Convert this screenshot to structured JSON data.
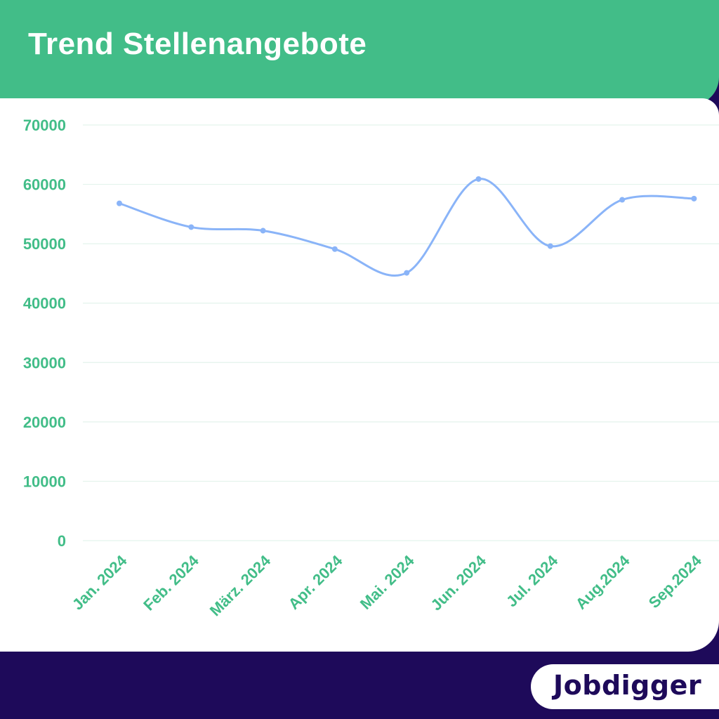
{
  "header": {
    "title": "Trend Stellenangebote"
  },
  "brand": {
    "logo_text": "Jobdigger"
  },
  "colors": {
    "header_green": "#42bd88",
    "footer_navy": "#1e0a5a",
    "line_blue": "#8ab4f8",
    "tick_green": "#42bd88",
    "grid": "#e3f3ec"
  },
  "chart_data": {
    "type": "line",
    "title": "Trend Stellenangebote",
    "xlabel": "",
    "ylabel": "",
    "categories": [
      "Jan. 2024",
      "Feb. 2024",
      "März. 2024",
      "Apr. 2024",
      "Mai. 2024",
      "Jun. 2024",
      "Jul. 2024",
      "Aug.2024",
      "Sep.2024"
    ],
    "series": [
      {
        "values": [
          56800,
          52800,
          52200,
          49100,
          45100,
          60900,
          49600,
          57400,
          57600
        ]
      }
    ],
    "ylim": [
      0,
      70000
    ],
    "yticks": [
      0,
      10000,
      20000,
      30000,
      40000,
      50000,
      60000,
      70000
    ],
    "grid": true,
    "smooth": true
  }
}
